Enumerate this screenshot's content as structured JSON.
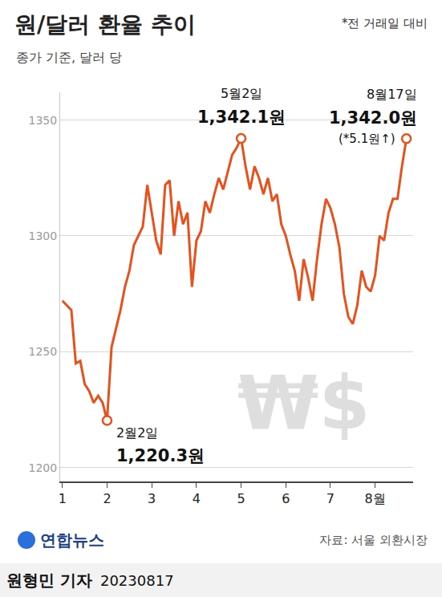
{
  "chart_data": {
    "type": "line",
    "title": "원/달러 환율 추이",
    "subtitle": "종가 기준, 달러 당",
    "note": "*전 거래일 대비",
    "watermark": "₩$",
    "color": "#e8501c",
    "grid": true,
    "categories": [
      "1",
      null,
      null,
      null,
      null,
      null,
      null,
      null,
      null,
      null,
      "2",
      null,
      null,
      null,
      null,
      null,
      null,
      null,
      null,
      null,
      "3",
      null,
      null,
      null,
      null,
      null,
      null,
      null,
      null,
      null,
      "4",
      null,
      null,
      null,
      null,
      null,
      null,
      null,
      null,
      null,
      "5",
      null,
      null,
      null,
      null,
      null,
      null,
      null,
      null,
      null,
      "6",
      null,
      null,
      null,
      null,
      null,
      null,
      null,
      null,
      null,
      "7",
      null,
      null,
      null,
      null,
      null,
      null,
      null,
      null,
      null,
      "8월",
      null,
      null,
      null,
      null,
      null,
      null,
      null
    ],
    "values": [
      1272,
      1270,
      1268,
      1245,
      1246,
      1236,
      1233,
      1228,
      1231,
      1228,
      1220.3,
      1252,
      1260,
      1268,
      1278,
      1285,
      1296,
      1300,
      1304,
      1322,
      1310,
      1298,
      1292,
      1322,
      1324,
      1300,
      1315,
      1305,
      1310,
      1278,
      1298,
      1302,
      1315,
      1310,
      1318,
      1325,
      1320,
      1328,
      1335,
      1338,
      1342.1,
      1330,
      1320,
      1330,
      1325,
      1318,
      1325,
      1315,
      1318,
      1305,
      1300,
      1292,
      1285,
      1272,
      1290,
      1282,
      1272,
      1290,
      1305,
      1316,
      1312,
      1305,
      1295,
      1275,
      1265,
      1262,
      1270,
      1285,
      1278,
      1276,
      1283,
      1300,
      1298,
      1310,
      1316,
      1316,
      1330,
      1342.0
    ],
    "ylim": [
      1194,
      1362
    ],
    "yticks": [
      1200,
      1250,
      1300,
      1350
    ],
    "annotations": [
      {
        "index": 10,
        "text": [
          "2월2일",
          "1,220.3원"
        ],
        "marker": "circle"
      },
      {
        "index": 40,
        "text": [
          "5월2일",
          "1,342.1원"
        ],
        "marker": "circle"
      },
      {
        "index": 77,
        "text": [
          "8월17일",
          "1,342.0원",
          "(*5.1원↑)"
        ],
        "marker": "circle"
      }
    ],
    "source": "자료: 서울 외환시장",
    "credit": "연합뉴스",
    "byline": "원형민 기자",
    "date": "20230817"
  }
}
